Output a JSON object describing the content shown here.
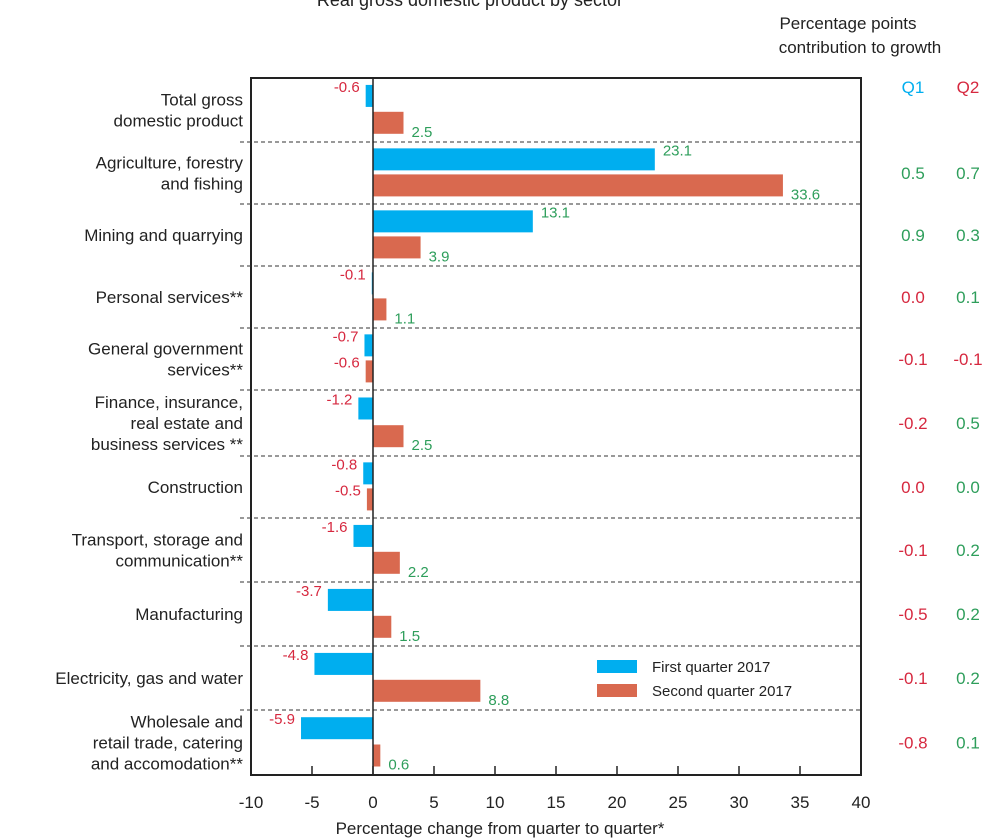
{
  "chart_data": {
    "type": "bar",
    "orientation": "horizontal",
    "title": "Real gross domestic product by sector",
    "xlabel": "Percentage change from quarter to quarter*",
    "xlim": [
      -10,
      40
    ],
    "xticks": [
      "-10",
      "-5",
      "0",
      "5",
      "10",
      "15",
      "20",
      "25",
      "30",
      "35",
      "40"
    ],
    "categories": [
      "Total gross domestic product",
      "Agriculture, forestry and fishing",
      "Mining and quarrying",
      "Personal services**",
      "General government services**",
      "Finance, insurance, real estate and business services **",
      "Construction",
      "Transport, storage and communication**",
      "Manufacturing",
      "Electricity, gas and water",
      "Wholesale and retail trade, catering and accomodation**"
    ],
    "category_lines": [
      [
        "Total gross",
        "domestic product"
      ],
      [
        "Agriculture, forestry",
        "and fishing"
      ],
      [
        "Mining and quarrying"
      ],
      [
        "Personal services**"
      ],
      [
        "General government",
        "services**"
      ],
      [
        "Finance, insurance,",
        "real estate and",
        "business services **"
      ],
      [
        "Construction"
      ],
      [
        "Transport, storage and",
        "communication**"
      ],
      [
        "Manufacturing"
      ],
      [
        "Electricity, gas and water"
      ],
      [
        "Wholesale and",
        "retail trade, catering",
        "and accomodation**"
      ]
    ],
    "series": [
      {
        "name": "First quarter 2017",
        "color": "#00aeef",
        "values": [
          -0.6,
          23.1,
          13.1,
          -0.1,
          -0.7,
          -1.2,
          -0.8,
          -1.6,
          -3.7,
          -4.8,
          -5.9
        ]
      },
      {
        "name": "Second quarter 2017",
        "color": "#d9694f",
        "values": [
          2.5,
          33.6,
          3.9,
          1.1,
          -0.6,
          2.5,
          -0.5,
          2.2,
          1.5,
          8.8,
          0.6
        ]
      }
    ],
    "value_labels": {
      "q1": [
        "-0.6",
        "23.1",
        "13.1",
        "-0.1",
        "-0.7",
        "-1.2",
        "-0.8",
        "-1.6",
        "-3.7",
        "-4.8",
        "-5.9"
      ],
      "q2": [
        "2.5",
        "33.6",
        "3.9",
        "1.1",
        "-0.6",
        "2.5",
        "-0.5",
        "2.2",
        "1.5",
        "8.8",
        "0.6"
      ]
    },
    "legend_position": "inside-lower-right",
    "grid": false,
    "positive_color": "#2e9e5b",
    "negative_color": "#d6283f",
    "contribution": {
      "heading_line1": "Percentage points",
      "heading_line2": "contribution to growth",
      "q1_header": "Q1",
      "q2_header": "Q2",
      "q1_header_color": "#00aeef",
      "q2_header_color": "#d6283f",
      "q1_values": [
        "",
        "0.5",
        "0.9",
        "0.0",
        "-0.1",
        "-0.2",
        "0.0",
        "-0.1",
        "-0.5",
        "-0.1",
        "-0.8"
      ],
      "q2_values": [
        "",
        "0.7",
        "0.3",
        "0.1",
        "-0.1",
        "0.5",
        "0.0",
        "0.2",
        "0.2",
        "0.2",
        "0.1"
      ],
      "q1_colors": [
        "",
        "#2e9e5b",
        "#2e9e5b",
        "#d6283f",
        "#d6283f",
        "#d6283f",
        "#d6283f",
        "#d6283f",
        "#d6283f",
        "#d6283f",
        "#d6283f"
      ],
      "q2_colors": [
        "",
        "#2e9e5b",
        "#2e9e5b",
        "#2e9e5b",
        "#d6283f",
        "#2e9e5b",
        "#2e9e5b",
        "#2e9e5b",
        "#2e9e5b",
        "#2e9e5b",
        "#2e9e5b"
      ]
    }
  }
}
